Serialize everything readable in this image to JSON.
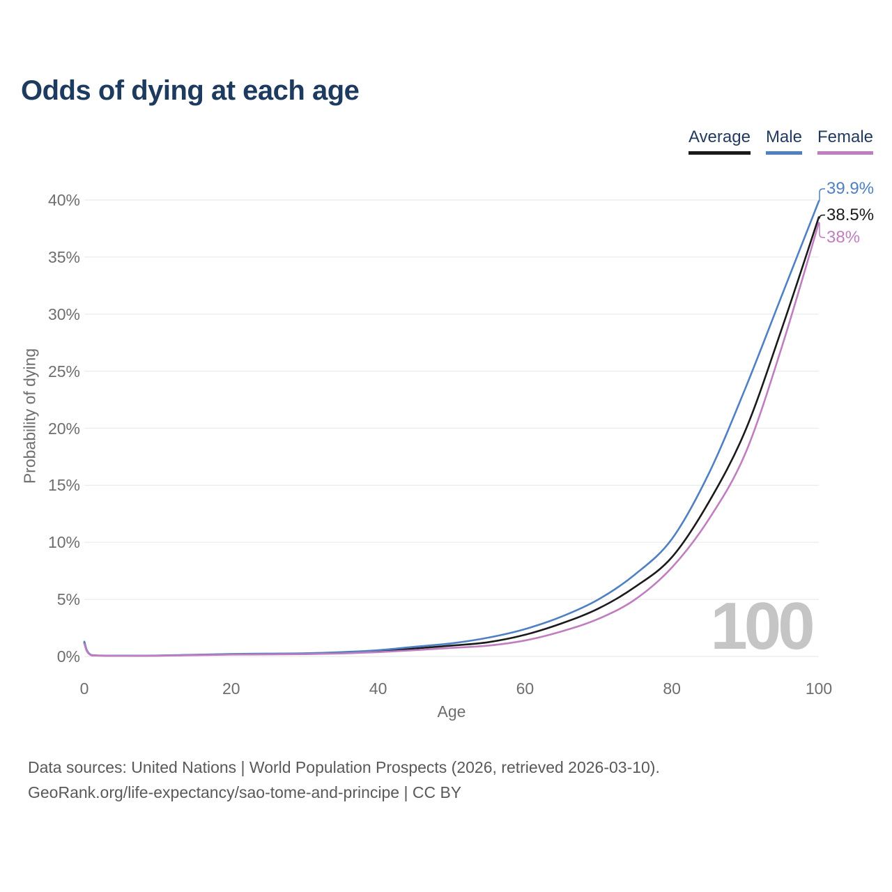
{
  "title": "Odds of dying at each age",
  "legend": [
    {
      "label": "Average",
      "color": "#1a1a1a"
    },
    {
      "label": "Male",
      "color": "#4f80c2"
    },
    {
      "label": "Female",
      "color": "#c07ec0"
    }
  ],
  "chart_data": {
    "type": "line",
    "title": "Odds of dying at each age",
    "xlabel": "Age",
    "ylabel": "Probability of dying",
    "xlim": [
      0,
      100
    ],
    "ylim": [
      0,
      40
    ],
    "x_ticks": [
      0,
      20,
      40,
      60,
      80,
      100
    ],
    "y_ticks": [
      "0%",
      "5%",
      "10%",
      "15%",
      "20%",
      "25%",
      "30%",
      "35%",
      "40%"
    ],
    "grid": "horizontal",
    "legend_position": "top-right",
    "watermark": "100",
    "x": [
      0,
      1,
      5,
      10,
      15,
      20,
      25,
      30,
      35,
      40,
      45,
      50,
      55,
      60,
      65,
      70,
      75,
      80,
      85,
      90,
      95,
      100
    ],
    "series": [
      {
        "name": "Average",
        "color": "#1a1a1a",
        "end_label": "38.5%",
        "values": [
          1.2,
          0.1,
          0.06,
          0.07,
          0.13,
          0.18,
          0.21,
          0.24,
          0.3,
          0.45,
          0.7,
          0.95,
          1.25,
          1.9,
          2.9,
          4.2,
          6.1,
          8.7,
          13.5,
          19.8,
          28.8,
          38.5
        ]
      },
      {
        "name": "Male",
        "color": "#4f80c2",
        "end_label": "39.9%",
        "values": [
          1.3,
          0.12,
          0.07,
          0.08,
          0.15,
          0.22,
          0.25,
          0.28,
          0.38,
          0.55,
          0.85,
          1.15,
          1.65,
          2.4,
          3.5,
          5.0,
          7.2,
          10.3,
          16.0,
          23.5,
          31.7,
          39.9
        ]
      },
      {
        "name": "Female",
        "color": "#c07ec0",
        "end_label": "38%",
        "values": [
          1.1,
          0.09,
          0.05,
          0.06,
          0.11,
          0.16,
          0.18,
          0.2,
          0.26,
          0.38,
          0.55,
          0.75,
          0.95,
          1.4,
          2.2,
          3.3,
          5.0,
          7.8,
          12.0,
          17.8,
          27.2,
          38.0
        ]
      }
    ]
  },
  "footer": {
    "line1": "Data sources: United Nations | World Population Prospects (2026, retrieved 2026-03-10).",
    "line2": "GeoRank.org/life-expectancy/sao-tome-and-principe | CC BY"
  },
  "colors": {
    "background": "#ffffff",
    "title": "#1d3a5f",
    "legend_text": "#223a5e",
    "axis_text": "#6e6e6e",
    "grid": "#ebebeb",
    "watermark": "#c5c5c5",
    "footer_text": "#595959",
    "average": "#1a1a1a",
    "male": "#4f80c2",
    "female": "#c07ec0"
  }
}
